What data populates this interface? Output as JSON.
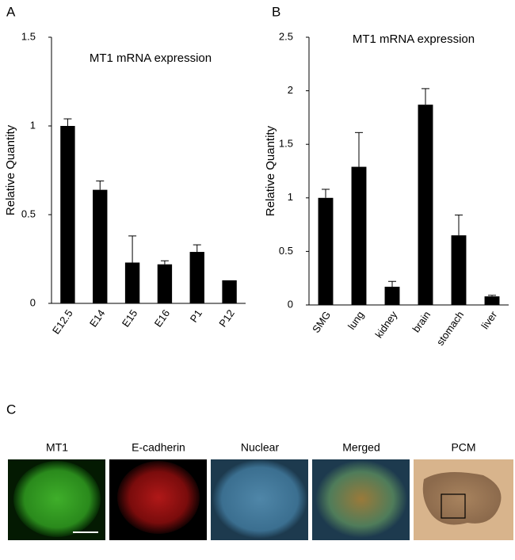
{
  "chart_data": [
    {
      "type": "bar",
      "panel_label": "A",
      "title": "MT1 mRNA expression",
      "ylabel": "Relative Quantity",
      "categories": [
        "E12.5",
        "E14",
        "E15",
        "E16",
        "P1",
        "P12"
      ],
      "values": [
        1.0,
        0.64,
        0.23,
        0.22,
        0.29,
        0.13
      ],
      "errors": [
        0.04,
        0.05,
        0.15,
        0.02,
        0.04,
        null
      ],
      "color": "#000000",
      "ylim": [
        0,
        1.5
      ],
      "yticks": [
        0,
        0.5,
        1,
        1.5
      ]
    },
    {
      "type": "bar",
      "panel_label": "B",
      "title": "MT1 mRNA expression",
      "ylabel": "Relative Quantity",
      "categories": [
        "SMG",
        "lung",
        "kidney",
        "brain",
        "stomach",
        "liver"
      ],
      "values": [
        1.0,
        1.29,
        0.17,
        1.87,
        0.65,
        0.08
      ],
      "errors": [
        0.08,
        0.32,
        0.05,
        0.15,
        0.19,
        0.01
      ],
      "color": "#000000",
      "ylim": [
        0,
        2.5
      ],
      "yticks": [
        0,
        0.5,
        1,
        1.5,
        2,
        2.5
      ]
    }
  ],
  "panel_c": {
    "label": "C",
    "captions": [
      "MT1",
      "E-cadherin",
      "Nuclear",
      "Merged",
      "PCM"
    ]
  }
}
